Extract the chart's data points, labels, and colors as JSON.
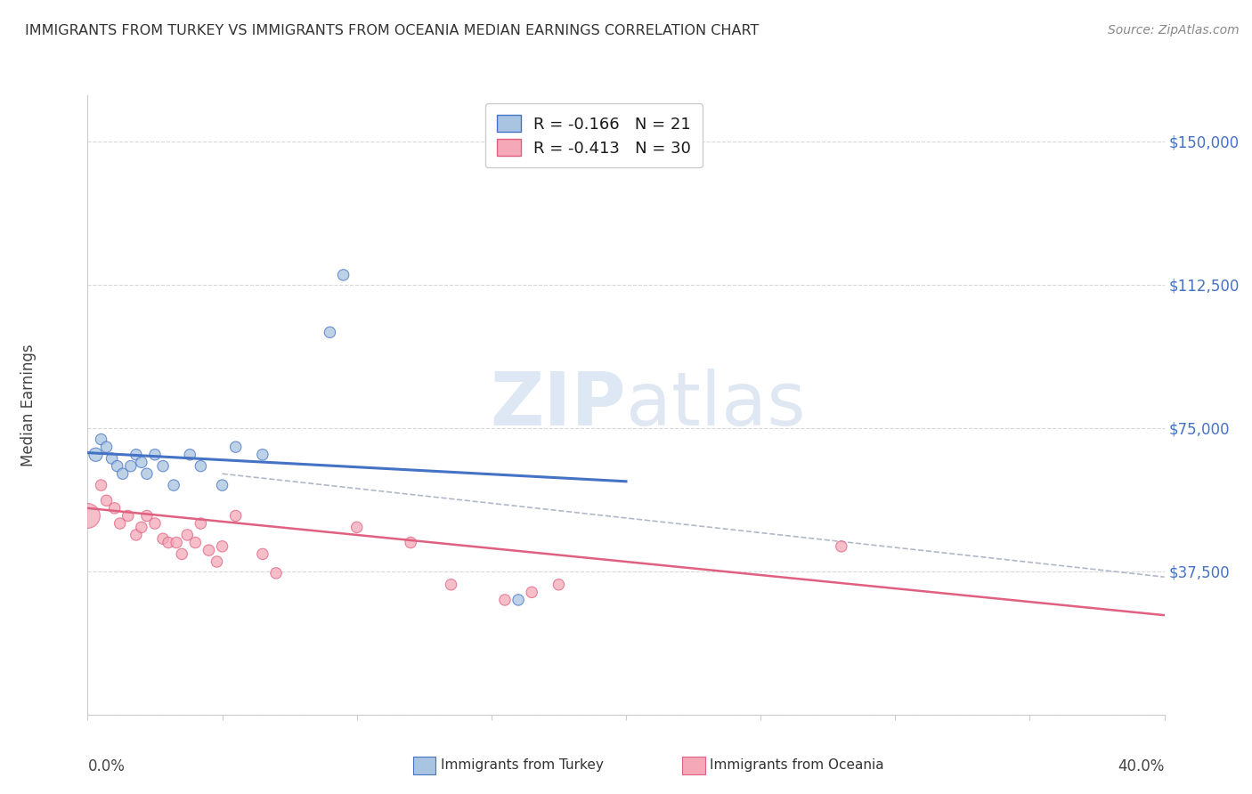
{
  "title": "IMMIGRANTS FROM TURKEY VS IMMIGRANTS FROM OCEANIA MEDIAN EARNINGS CORRELATION CHART",
  "source": "Source: ZipAtlas.com",
  "ylabel": "Median Earnings",
  "y_ticks": [
    0,
    37500,
    75000,
    112500,
    150000
  ],
  "y_tick_labels": [
    "",
    "$37,500",
    "$75,000",
    "$112,500",
    "$150,000"
  ],
  "x_lim": [
    0,
    0.4
  ],
  "y_lim": [
    0,
    162000
  ],
  "legend_r_turkey": "-0.166",
  "legend_n_turkey": "21",
  "legend_r_oceania": "-0.413",
  "legend_n_oceania": "30",
  "color_turkey": "#a8c4e0",
  "color_oceania": "#f4a8b8",
  "color_turkey_line": "#4472c4",
  "color_oceania_line": "#e06080",
  "color_axis_labels": "#4472c4",
  "watermark_zip": "ZIP",
  "watermark_atlas": "atlas",
  "turkey_scatter_x": [
    0.003,
    0.005,
    0.007,
    0.009,
    0.011,
    0.013,
    0.016,
    0.018,
    0.02,
    0.022,
    0.025,
    0.028,
    0.032,
    0.038,
    0.042,
    0.05,
    0.055,
    0.065,
    0.09,
    0.095,
    0.16
  ],
  "turkey_scatter_y": [
    68000,
    72000,
    70000,
    67000,
    65000,
    63000,
    65000,
    68000,
    66000,
    63000,
    68000,
    65000,
    60000,
    68000,
    65000,
    60000,
    70000,
    68000,
    100000,
    115000,
    30000
  ],
  "turkey_scatter_size": [
    120,
    80,
    80,
    80,
    80,
    80,
    80,
    80,
    80,
    80,
    80,
    80,
    80,
    80,
    80,
    80,
    80,
    80,
    80,
    80,
    80
  ],
  "oceania_scatter_x": [
    0.0,
    0.005,
    0.007,
    0.01,
    0.012,
    0.015,
    0.018,
    0.02,
    0.022,
    0.025,
    0.028,
    0.03,
    0.033,
    0.035,
    0.037,
    0.04,
    0.042,
    0.045,
    0.048,
    0.05,
    0.055,
    0.065,
    0.07,
    0.1,
    0.12,
    0.135,
    0.155,
    0.165,
    0.175,
    0.28
  ],
  "oceania_scatter_y": [
    52000,
    60000,
    56000,
    54000,
    50000,
    52000,
    47000,
    49000,
    52000,
    50000,
    46000,
    45000,
    45000,
    42000,
    47000,
    45000,
    50000,
    43000,
    40000,
    44000,
    52000,
    42000,
    37000,
    49000,
    45000,
    34000,
    30000,
    32000,
    34000,
    44000
  ],
  "oceania_scatter_size": [
    400,
    80,
    80,
    80,
    80,
    80,
    80,
    80,
    80,
    80,
    80,
    80,
    80,
    80,
    80,
    80,
    80,
    80,
    80,
    80,
    80,
    80,
    80,
    80,
    80,
    80,
    80,
    80,
    80,
    80
  ],
  "turkey_trend_x": [
    0.0,
    0.2
  ],
  "turkey_trend_y": [
    68500,
    61000
  ],
  "oceania_trend_x": [
    0.0,
    0.4
  ],
  "oceania_trend_y": [
    54000,
    26000
  ],
  "dashed_trend_x": [
    0.05,
    0.4
  ],
  "dashed_trend_y": [
    63000,
    36000
  ],
  "background_color": "#ffffff",
  "grid_color": "#d8d8d8"
}
